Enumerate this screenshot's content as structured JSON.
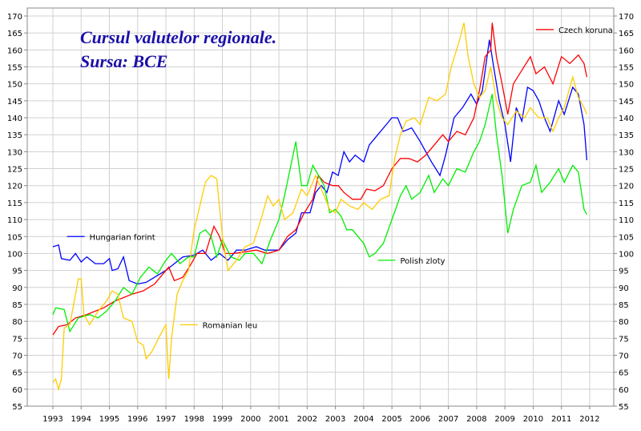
{
  "chart_data": {
    "type": "line",
    "title": "Cursul valutelor regionale.",
    "subtitle": "Sursa: BCE",
    "xlabel": "",
    "ylabel": "",
    "xlim": [
      1992.1,
      2012.9
    ],
    "ylim": [
      55,
      171.5
    ],
    "grid": true,
    "x_ticks": [
      1993,
      1994,
      1995,
      1996,
      1997,
      1998,
      1999,
      2000,
      2001,
      2002,
      2003,
      2004,
      2005,
      2006,
      2007,
      2008,
      2009,
      2010,
      2011,
      2012
    ],
    "y_ticks": [
      55,
      60,
      65,
      70,
      75,
      80,
      85,
      90,
      95,
      100,
      105,
      110,
      115,
      120,
      125,
      130,
      135,
      140,
      145,
      150,
      155,
      160,
      165,
      170
    ],
    "series": [
      {
        "name": "Hungarian forint",
        "color": "#0000ff",
        "label_at": [
          1993.5,
          105
        ],
        "x": [
          1993.0,
          1993.2,
          1993.3,
          1993.6,
          1993.8,
          1994.0,
          1994.2,
          1994.5,
          1994.8,
          1995.0,
          1995.1,
          1995.3,
          1995.5,
          1995.7,
          1996.0,
          1996.3,
          1996.6,
          1997.0,
          1997.3,
          1997.6,
          1998.0,
          1998.3,
          1998.6,
          1998.9,
          1999.2,
          1999.5,
          1999.8,
          2000.2,
          2000.5,
          2000.8,
          2001.0,
          2001.3,
          2001.6,
          2001.8,
          2002.1,
          2002.3,
          2002.5,
          2002.7,
          2002.9,
          2003.1,
          2003.3,
          2003.5,
          2003.7,
          2004.0,
          2004.2,
          2004.5,
          2004.8,
          2005.0,
          2005.2,
          2005.4,
          2005.7,
          2006.0,
          2006.2,
          2006.4,
          2006.7,
          2006.9,
          2007.2,
          2007.5,
          2007.8,
          2008.0,
          2008.2,
          2008.45,
          2008.6,
          2008.8,
          2009.0,
          2009.2,
          2009.4,
          2009.6,
          2009.8,
          2010.0,
          2010.2,
          2010.4,
          2010.6,
          2010.9,
          2011.1,
          2011.4,
          2011.6,
          2011.8,
          2011.9
        ],
        "y": [
          102,
          102.5,
          98.5,
          98,
          100,
          97.5,
          99,
          97,
          97,
          98.5,
          95,
          95.5,
          99,
          92,
          91,
          91.5,
          93,
          95,
          97,
          99,
          99.5,
          101,
          98,
          100,
          98,
          101,
          101,
          102,
          101,
          101,
          101,
          104,
          106,
          112,
          112,
          118,
          120,
          118,
          124,
          123,
          130,
          127,
          129,
          127,
          132,
          135,
          138,
          140,
          140,
          136,
          137,
          133,
          130,
          127,
          123,
          129,
          140,
          143,
          147,
          144,
          148,
          163,
          155,
          145,
          138,
          127,
          143,
          139,
          149,
          148,
          145,
          140,
          136,
          145,
          141,
          149,
          147,
          138,
          127.5
        ]
      },
      {
        "name": "Czech koruna",
        "color": "#ff0000",
        "label_at": [
          2010.1,
          166
        ],
        "x": [
          1993.0,
          1993.2,
          1993.5,
          1993.8,
          1994.2,
          1994.5,
          1994.8,
          1995.2,
          1995.5,
          1995.8,
          1996.2,
          1996.6,
          1996.9,
          1997.1,
          1997.3,
          1997.6,
          1997.9,
          1998.1,
          1998.4,
          1998.7,
          1998.9,
          1999.1,
          1999.4,
          1999.8,
          2000.2,
          2000.6,
          2001.0,
          2001.3,
          2001.6,
          2001.9,
          2002.2,
          2002.4,
          2002.6,
          2002.9,
          2003.1,
          2003.3,
          2003.6,
          2003.9,
          2004.1,
          2004.4,
          2004.7,
          2005.0,
          2005.3,
          2005.6,
          2005.9,
          2006.2,
          2006.5,
          2006.8,
          2007.0,
          2007.3,
          2007.6,
          2007.9,
          2008.1,
          2008.3,
          2008.5,
          2008.55,
          2008.7,
          2008.9,
          2009.1,
          2009.3,
          2009.6,
          2009.9,
          2010.1,
          2010.4,
          2010.7,
          2011.0,
          2011.3,
          2011.6,
          2011.8,
          2011.9
        ],
        "y": [
          76,
          78.5,
          79,
          81,
          82,
          83,
          84,
          86,
          87,
          88,
          89,
          91,
          94,
          96,
          92,
          93,
          97,
          100,
          100,
          108,
          105,
          100,
          100,
          100.5,
          101,
          100,
          101,
          105,
          107,
          112,
          116,
          123,
          121,
          120,
          120,
          118,
          116,
          116,
          119,
          118.5,
          120,
          125,
          128,
          128,
          127,
          129,
          132,
          135,
          133,
          136,
          135,
          140,
          148,
          158,
          160,
          168,
          158,
          150,
          141,
          150,
          154,
          158,
          153,
          155,
          150,
          158,
          156,
          158.5,
          156,
          152
        ]
      },
      {
        "name": "Polish zloty",
        "color": "#00ee00",
        "label_at": [
          2004.5,
          98
        ],
        "x": [
          1993.0,
          1993.1,
          1993.4,
          1993.6,
          1993.9,
          1994.3,
          1994.6,
          1994.9,
          1995.2,
          1995.5,
          1995.8,
          1996.1,
          1996.4,
          1996.7,
          1997.0,
          1997.2,
          1997.5,
          1997.8,
          1998.0,
          1998.2,
          1998.4,
          1998.6,
          1998.8,
          1999.0,
          1999.3,
          1999.6,
          1999.8,
          2000.1,
          2000.4,
          2000.7,
          2001.0,
          2001.2,
          2001.4,
          2001.6,
          2001.8,
          2002.0,
          2002.2,
          2002.4,
          2002.6,
          2002.8,
          2003.0,
          2003.2,
          2003.4,
          2003.6,
          2003.8,
          2004.0,
          2004.2,
          2004.4,
          2004.7,
          2005.0,
          2005.3,
          2005.5,
          2005.7,
          2006.0,
          2006.3,
          2006.5,
          2006.8,
          2007.0,
          2007.3,
          2007.6,
          2007.9,
          2008.1,
          2008.3,
          2008.55,
          2008.7,
          2008.9,
          2009.1,
          2009.3,
          2009.6,
          2009.9,
          2010.1,
          2010.3,
          2010.6,
          2010.9,
          2011.1,
          2011.4,
          2011.6,
          2011.8,
          2011.9
        ],
        "y": [
          82,
          84,
          83.5,
          77,
          81,
          82,
          81,
          83,
          86,
          90,
          88,
          93,
          96,
          94,
          98,
          100,
          97,
          99,
          99,
          106,
          107,
          105,
          99,
          104,
          99,
          98,
          100,
          100,
          97,
          104,
          110,
          117,
          125,
          133,
          120,
          120,
          126,
          123,
          120,
          112,
          113,
          111,
          107,
          107,
          105,
          103,
          99,
          100,
          103,
          110,
          117,
          120,
          116,
          118,
          123,
          118,
          122,
          120,
          125,
          124,
          130,
          133,
          138,
          147,
          135,
          123,
          106,
          113,
          120,
          121,
          126,
          118,
          121,
          125,
          121,
          126,
          124,
          113,
          111.5
        ]
      },
      {
        "name": "Romanian leu",
        "color": "#ffcc00",
        "label_at": [
          1997.5,
          79
        ],
        "x": [
          1993.0,
          1993.1,
          1993.2,
          1993.3,
          1993.4,
          1993.6,
          1993.8,
          1993.9,
          1994.0,
          1994.1,
          1994.3,
          1994.6,
          1994.9,
          1995.1,
          1995.3,
          1995.5,
          1995.8,
          1996.0,
          1996.2,
          1996.3,
          1996.5,
          1996.8,
          1997.0,
          1997.1,
          1997.2,
          1997.4,
          1997.6,
          1997.8,
          1998.0,
          1998.2,
          1998.4,
          1998.6,
          1998.8,
          1999.0,
          1999.2,
          1999.5,
          1999.8,
          2000.1,
          2000.4,
          2000.6,
          2000.8,
          2001.0,
          2001.2,
          2001.5,
          2001.8,
          2002.0,
          2002.3,
          2002.5,
          2002.8,
          2003.0,
          2003.2,
          2003.5,
          2003.8,
          2004.0,
          2004.3,
          2004.6,
          2004.9,
          2005.1,
          2005.3,
          2005.5,
          2005.8,
          2006.0,
          2006.3,
          2006.6,
          2006.9,
          2007.1,
          2007.4,
          2007.55,
          2007.7,
          2007.9,
          2008.1,
          2008.3,
          2008.5,
          2008.7,
          2008.9,
          2009.1,
          2009.4,
          2009.7,
          2009.9,
          2010.2,
          2010.5,
          2010.7,
          2010.9,
          2011.1,
          2011.4,
          2011.6,
          2011.8,
          2011.9
        ],
        "y": [
          62,
          63,
          60,
          63,
          78,
          79,
          88,
          92.5,
          92.5,
          82,
          79,
          83,
          86,
          89,
          88,
          81,
          80,
          74,
          73,
          69,
          71,
          76,
          79,
          63,
          75,
          88,
          92,
          95,
          107,
          114,
          121,
          123,
          122,
          105,
          95,
          98,
          102,
          103,
          111,
          117,
          114,
          116,
          110,
          112,
          119,
          117,
          123,
          119,
          113,
          112,
          116,
          114,
          113,
          115,
          113,
          116,
          117,
          128,
          135,
          139,
          140,
          138,
          146,
          145,
          147,
          155,
          163,
          168,
          158,
          150,
          146,
          148,
          155,
          145,
          140,
          138,
          142,
          140,
          143,
          140,
          140,
          136,
          140,
          143,
          152,
          146,
          143,
          141
        ]
      }
    ]
  }
}
